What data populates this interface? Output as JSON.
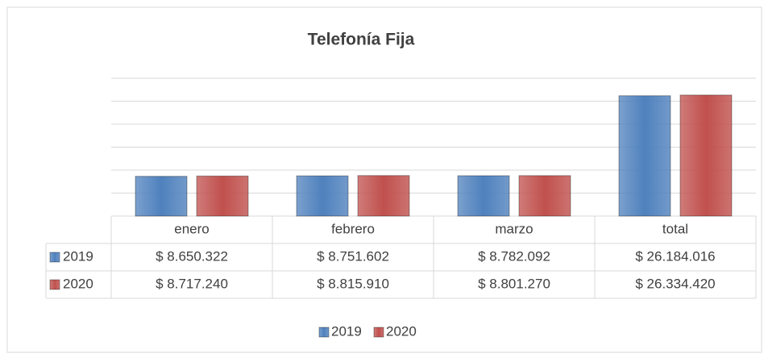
{
  "chart_data": {
    "type": "bar",
    "title": "Telefonía Fija",
    "categories": [
      "enero",
      "febrero",
      "marzo",
      "total"
    ],
    "series": [
      {
        "name": "2019",
        "color": "#4f81bd",
        "values": [
          8650322,
          8751602,
          8782092,
          26184016
        ],
        "value_labels": [
          "$ 8.650.322",
          "$ 8.751.602",
          "$ 8.782.092",
          "$ 26.184.016"
        ]
      },
      {
        "name": "2020",
        "color": "#c0504d",
        "values": [
          8717240,
          8815910,
          8801270,
          26334420
        ],
        "value_labels": [
          "$ 8.717.240",
          "$ 8.815.910",
          "$ 8.801.270",
          "$ 26.334.420"
        ]
      }
    ],
    "ylim": [
      0,
      30000000
    ],
    "yticks": [
      0,
      5000000,
      10000000,
      15000000,
      20000000,
      25000000,
      30000000
    ],
    "grid": true,
    "legend": "bottom"
  }
}
